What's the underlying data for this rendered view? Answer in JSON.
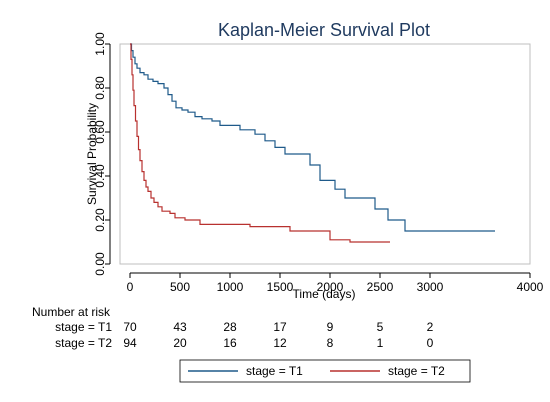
{
  "chart_data": {
    "type": "line",
    "step": true,
    "title": "Kaplan-Meier Survival Plot",
    "xlabel": "Time (days)",
    "ylabel": "Survival Probability",
    "xlim": [
      -100,
      4000
    ],
    "ylim": [
      0,
      1
    ],
    "xticks": [
      0,
      500,
      1000,
      1500,
      2000,
      2500,
      3000,
      4000
    ],
    "yticks": [
      0,
      0.2,
      0.4,
      0.6,
      0.8,
      1
    ],
    "ytick_labels": [
      "0.00",
      "0.20",
      "0.40",
      "0.60",
      "0.80",
      "1.00"
    ],
    "grid": false,
    "series": [
      {
        "name": "stage = T1",
        "color": "#1f5a8a",
        "x": [
          0,
          15,
          30,
          50,
          70,
          100,
          140,
          180,
          230,
          280,
          340,
          380,
          420,
          460,
          520,
          580,
          650,
          720,
          820,
          900,
          1100,
          1250,
          1350,
          1450,
          1550,
          1800,
          1900,
          2050,
          2150,
          2450,
          2580,
          2750,
          3650
        ],
        "y": [
          1.0,
          0.97,
          0.94,
          0.91,
          0.89,
          0.87,
          0.86,
          0.84,
          0.83,
          0.82,
          0.8,
          0.77,
          0.74,
          0.71,
          0.7,
          0.69,
          0.67,
          0.66,
          0.65,
          0.63,
          0.61,
          0.59,
          0.56,
          0.53,
          0.5,
          0.45,
          0.38,
          0.34,
          0.3,
          0.25,
          0.2,
          0.15,
          0.15
        ]
      },
      {
        "name": "stage = T2",
        "color": "#b8312f",
        "x": [
          0,
          10,
          20,
          30,
          40,
          55,
          70,
          85,
          100,
          120,
          140,
          160,
          180,
          210,
          240,
          280,
          320,
          400,
          450,
          550,
          700,
          1200,
          1600,
          2000,
          2200,
          2600
        ],
        "y": [
          1.0,
          0.93,
          0.86,
          0.79,
          0.72,
          0.65,
          0.58,
          0.52,
          0.47,
          0.42,
          0.38,
          0.35,
          0.33,
          0.3,
          0.28,
          0.26,
          0.24,
          0.23,
          0.21,
          0.2,
          0.18,
          0.17,
          0.15,
          0.11,
          0.1,
          0.1
        ]
      }
    ],
    "risk_table": {
      "header": "Number at risk",
      "rows": [
        {
          "label": "stage = T1",
          "counts": [
            "70",
            "43",
            "28",
            "17",
            "9",
            "5",
            "2"
          ]
        },
        {
          "label": "stage = T2",
          "counts": [
            "94",
            "20",
            "16",
            "12",
            "8",
            "1",
            "0"
          ]
        }
      ]
    },
    "legend": {
      "position": "bottom",
      "entries": [
        {
          "label": "stage = T1",
          "color": "#1f5a8a"
        },
        {
          "label": "stage = T2",
          "color": "#b8312f"
        }
      ]
    }
  }
}
